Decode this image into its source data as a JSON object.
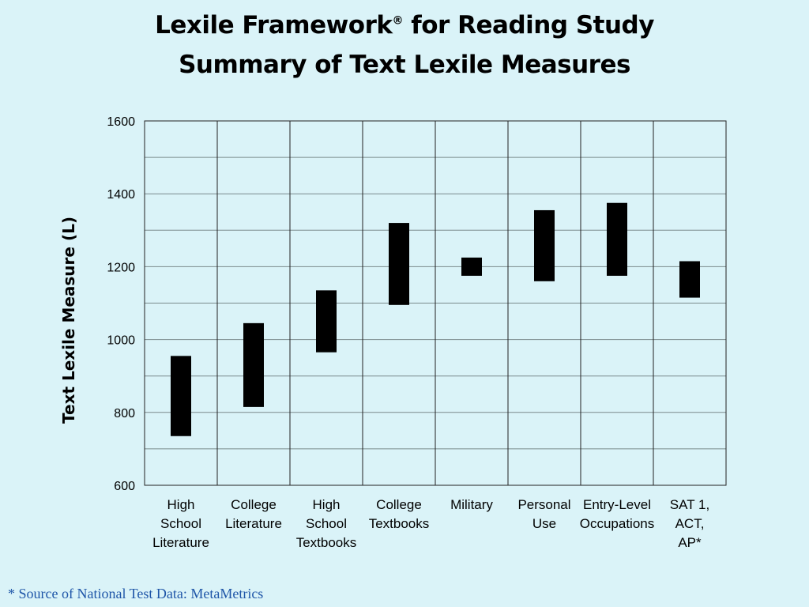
{
  "title_line1": "Lexile  Framework",
  "title_reg": "®",
  "title_line1_rest": " for Reading Study",
  "title_line2": "Summary of Text Lexile Measures",
  "footnote": "* Source of National Test Data: MetaMetrics",
  "colors": {
    "background": "#daf3f8",
    "bar": "#000000",
    "footnote": "#1f56a8",
    "grid": "#7a8a8c"
  },
  "chart_data": {
    "type": "bar",
    "subtype": "floating-range",
    "title": "Lexile Framework® for Reading Study Summary of Text Lexile Measures",
    "xlabel": "",
    "ylabel": "Text Lexile Measure (L)",
    "ylim": [
      600,
      1600
    ],
    "yticks": [
      600,
      800,
      1000,
      1200,
      1400,
      1600
    ],
    "grid": true,
    "categories": [
      [
        "High",
        "School",
        "Literature"
      ],
      [
        "College",
        "Literature"
      ],
      [
        "High",
        "School",
        "Textbooks"
      ],
      [
        "College",
        "Textbooks"
      ],
      [
        "Military"
      ],
      [
        "Personal",
        "Use"
      ],
      [
        "Entry-Level",
        "Occupations"
      ],
      [
        "SAT 1,",
        "ACT,",
        "AP*"
      ]
    ],
    "ranges": [
      [
        735,
        955
      ],
      [
        815,
        1045
      ],
      [
        965,
        1135
      ],
      [
        1095,
        1320
      ],
      [
        1175,
        1225
      ],
      [
        1160,
        1355
      ],
      [
        1175,
        1375
      ],
      [
        1115,
        1215
      ]
    ]
  }
}
